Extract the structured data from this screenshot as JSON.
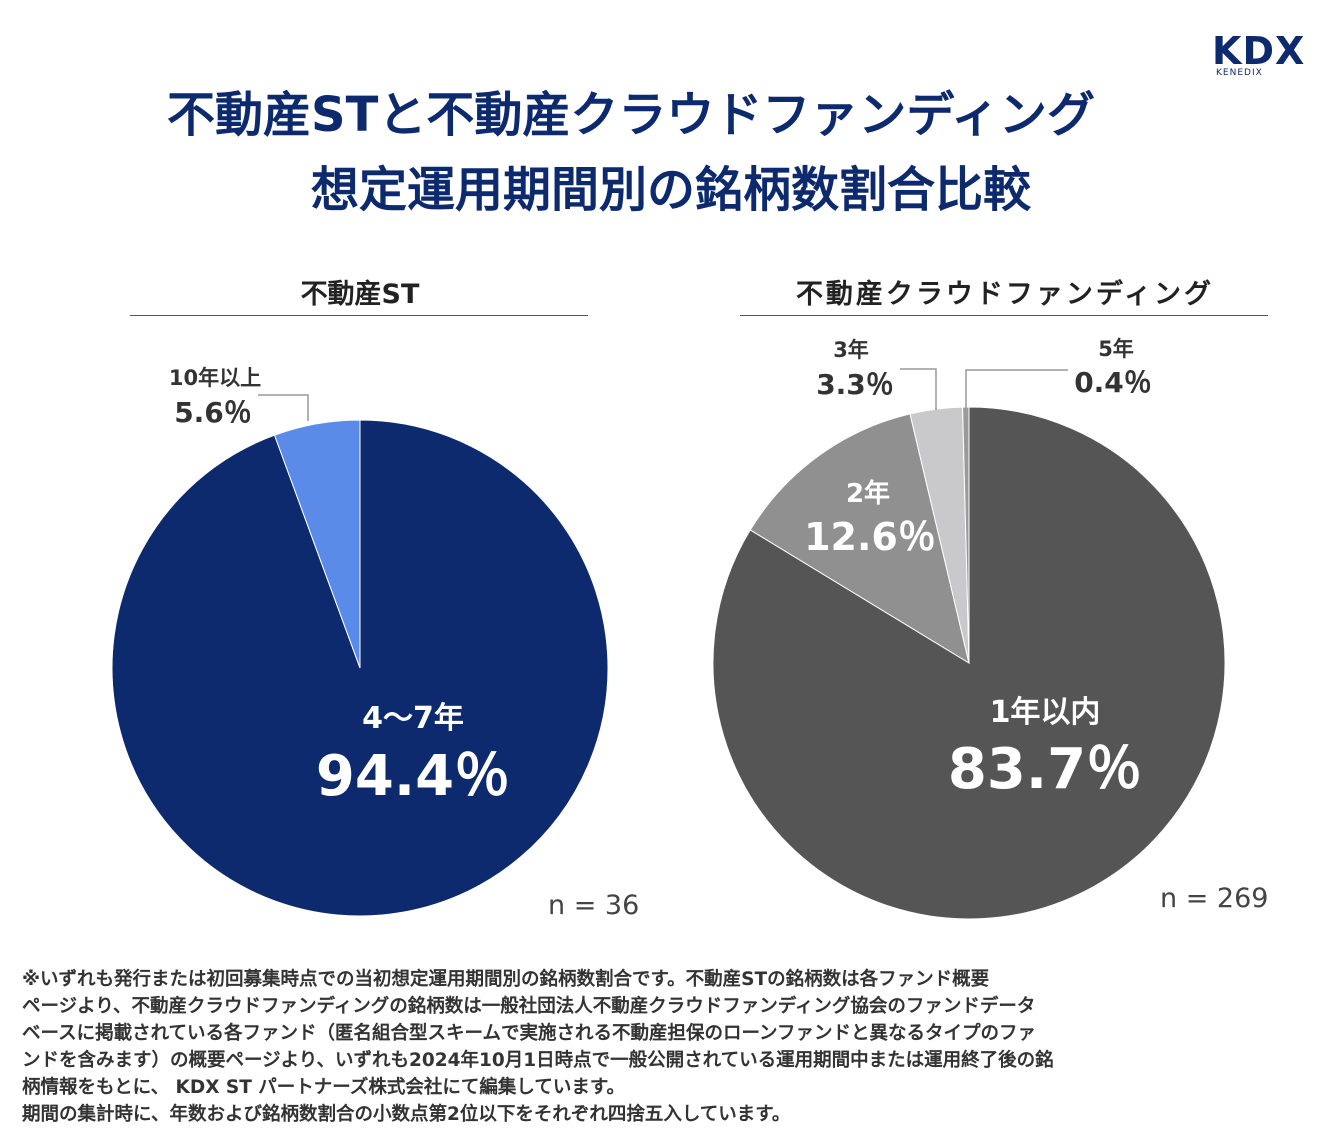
{
  "logo": {
    "mark": "KDX",
    "sub": "KENEDIX"
  },
  "title": {
    "line1": "不動産STと不動産クラウドファンディング",
    "line2": "想定運用期間別の銘柄数割合比較"
  },
  "colors": {
    "title": "#0c2a6d",
    "st_main": "#0c2a6d",
    "st_minor": "#5b8be9",
    "cf_1y": "#555555",
    "cf_2y": "#909090",
    "cf_3y": "#c9c9cc",
    "cf_5y": "#9a9a9a"
  },
  "chart_data": [
    {
      "type": "pie",
      "title": "不動産ST",
      "n_label": "n = 36",
      "slices": [
        {
          "label": "4〜7年",
          "value": 94.4,
          "display": "94.4％",
          "color": "#0c2a6d"
        },
        {
          "label": "10年以上",
          "value": 5.6,
          "display": "5.6％",
          "color": "#5b8be9"
        }
      ]
    },
    {
      "type": "pie",
      "title": "不動産クラウドファンディング",
      "n_label": "n = 269",
      "slices": [
        {
          "label": "1年以内",
          "value": 83.7,
          "display": "83.7％",
          "color": "#555555"
        },
        {
          "label": "2年",
          "value": 12.6,
          "display": "12.6％",
          "color": "#909090"
        },
        {
          "label": "3年",
          "value": 3.3,
          "display": "3.3％",
          "color": "#c9c9cc"
        },
        {
          "label": "5年",
          "value": 0.4,
          "display": "0.4％",
          "color": "#9a9a9a"
        }
      ]
    }
  ],
  "notes": [
    "※いずれも発行または初回募集時点での当初想定運用期間別の銘柄数割合です。不動産STの銘柄数は各ファンド概要",
    "ページより、不動産クラウドファンディングの銘柄数は一般社団法人不動産クラウドファンディング協会のファンドデータ",
    "ベースに掲載されている各ファンド（匿名組合型スキームで実施される不動産担保のローンファンドと異なるタイプのファ",
    "ンドを含みます）の概要ページより、いずれも2024年10月1日時点で一般公開されている運用期間中または運用終了後の銘",
    "柄情報をもとに、 KDX ST パートナーズ株式会社にて編集しています。",
    "期間の集計時に、年数および銘柄数割合の小数点第2位以下をそれぞれ四捨五入しています。"
  ]
}
